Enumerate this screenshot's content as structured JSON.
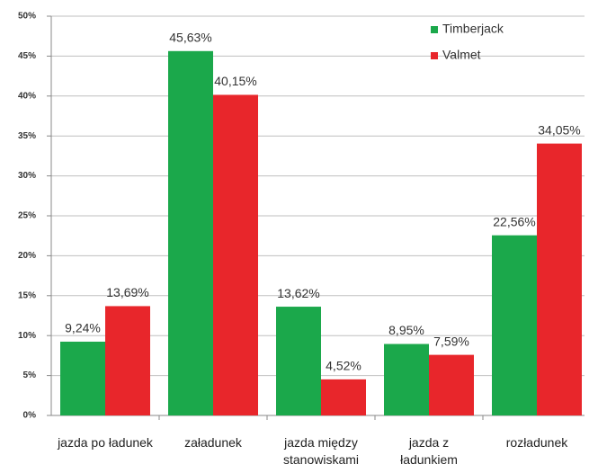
{
  "chart_data": {
    "type": "bar",
    "categories": [
      "jazda po ładunek",
      "załadunek",
      "jazda między stanowiskami",
      "jazda z ładunkiem",
      "rozładunek"
    ],
    "series": [
      {
        "name": "Timberjack",
        "color": "#1ba84b",
        "values": [
          9.24,
          45.63,
          13.62,
          8.95,
          22.56
        ],
        "value_labels": [
          "9,24%",
          "45,63%",
          "13,62%",
          "8,95%",
          "22,56%"
        ]
      },
      {
        "name": "Valmet",
        "color": "#e8262b",
        "values": [
          13.69,
          40.15,
          4.52,
          7.59,
          34.05
        ],
        "value_labels": [
          "13,69%",
          "40,15%",
          "4,52%",
          "7,59%",
          "34,05%"
        ]
      }
    ],
    "ylim": [
      0,
      50
    ],
    "yticks": [
      {
        "value": 0,
        "label": "0%"
      },
      {
        "value": 5,
        "label": "5%"
      },
      {
        "value": 10,
        "label": "10%"
      },
      {
        "value": 15,
        "label": "15%"
      },
      {
        "value": 20,
        "label": "20%"
      },
      {
        "value": 25,
        "label": "25%"
      },
      {
        "value": 30,
        "label": "30%"
      },
      {
        "value": 35,
        "label": "35%"
      },
      {
        "value": 40,
        "label": "40%"
      },
      {
        "value": 45,
        "label": "45%"
      },
      {
        "value": 50,
        "label": "50%"
      }
    ],
    "grid": true,
    "legend": "top-right"
  }
}
